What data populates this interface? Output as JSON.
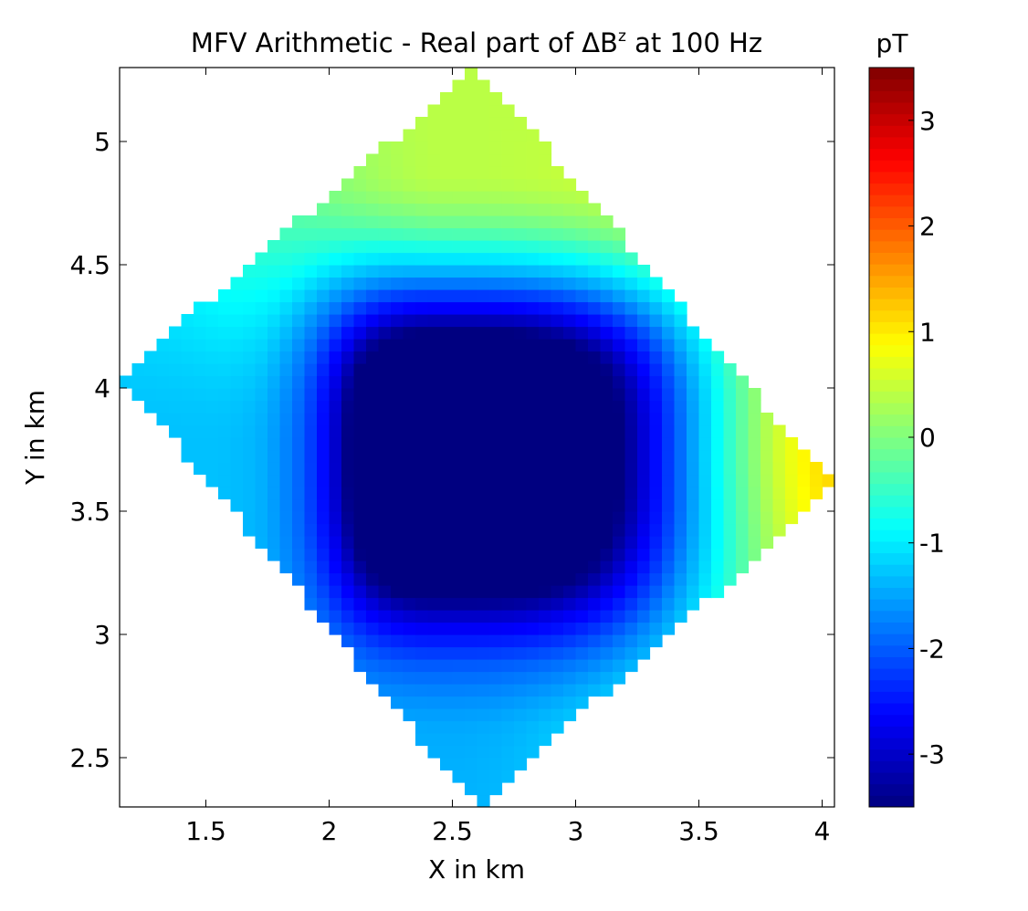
{
  "chart_data": {
    "type": "heatmap",
    "title": "MFV Arithmetic - Real part of ΔB",
    "title_superscript": "z",
    "title_suffix": " at 100 Hz",
    "xlabel": "X in km",
    "ylabel": "Y in km",
    "xlim": [
      1.15,
      4.05
    ],
    "ylim": [
      2.3,
      5.3
    ],
    "x_ticks": [
      1.5,
      2,
      2.5,
      3,
      3.5,
      4
    ],
    "y_ticks": [
      2.5,
      3,
      3.5,
      4,
      4.5,
      5
    ],
    "grid": false,
    "colormap": "jet",
    "colorbar": {
      "label": "pT",
      "range": [
        -3.5,
        3.5
      ],
      "ticks": [
        -3,
        -2,
        -1,
        0,
        1,
        2,
        3
      ]
    },
    "field": {
      "domain_shape": "rotated square",
      "vertices": [
        {
          "x": 2.6,
          "y": 5.3
        },
        {
          "x": 4.05,
          "y": 3.6
        },
        {
          "x": 2.6,
          "y": 2.3
        },
        {
          "x": 1.15,
          "y": 4.05
        }
      ],
      "anomaly_center": {
        "x": 2.5,
        "y": 3.75
      },
      "core_min_value": -3.5,
      "east_tip_value": 1.2,
      "north_tip_value": 0.4,
      "south_tip_value": -1.4,
      "west_tip_value": -1.3
    }
  }
}
